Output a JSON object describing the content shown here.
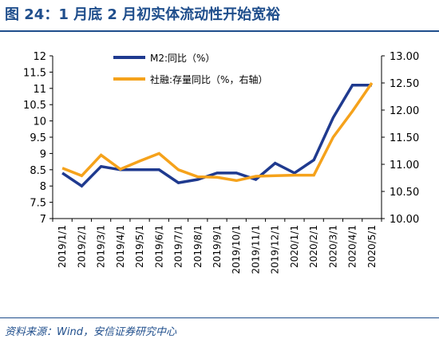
{
  "header": {
    "title": "图 24：1 月底 2 月初实体流动性开始宽裕"
  },
  "footer": {
    "source": "资料来源：Wind，安信证券研究中心"
  },
  "colors": {
    "accent": "#1f4e8c",
    "m2": "#1f3a8f",
    "social_financing": "#f5a21b"
  },
  "chart_data": {
    "type": "line",
    "x": [
      "2019/1/1",
      "2019/2/1",
      "2019/3/1",
      "2019/4/1",
      "2019/5/1",
      "2019/6/1",
      "2019/7/1",
      "2019/8/1",
      "2019/9/1",
      "2019/10/1",
      "2019/11/1",
      "2019/12/1",
      "2020/1/1",
      "2020/2/1",
      "2020/3/1",
      "2020/4/1",
      "2020/5/1"
    ],
    "series": [
      {
        "name": "M2:同比（%）",
        "axis": "left",
        "values": [
          8.4,
          8.0,
          8.6,
          8.5,
          8.5,
          8.5,
          8.1,
          8.2,
          8.4,
          8.4,
          8.2,
          8.7,
          8.4,
          8.8,
          10.1,
          11.1,
          11.1
        ]
      },
      {
        "name": "社融:存量同比（%，右轴）",
        "axis": "right",
        "values": [
          10.93,
          10.79,
          11.17,
          10.91,
          11.06,
          11.2,
          10.9,
          10.77,
          10.76,
          10.7,
          10.78,
          10.79,
          10.8,
          10.8,
          11.5,
          11.98,
          12.5
        ]
      }
    ],
    "y_left": {
      "ylim": [
        7,
        12
      ],
      "ticks": [
        "7",
        "7.5",
        "8",
        "8.5",
        "9",
        "9.5",
        "10",
        "10.5",
        "11",
        "11.5",
        "12"
      ]
    },
    "y_right": {
      "ylim": [
        10.0,
        13.0
      ],
      "ticks": [
        "10.00",
        "10.50",
        "11.00",
        "11.50",
        "12.00",
        "12.50",
        "13.00"
      ]
    },
    "grid": false,
    "legend": "top-center"
  }
}
